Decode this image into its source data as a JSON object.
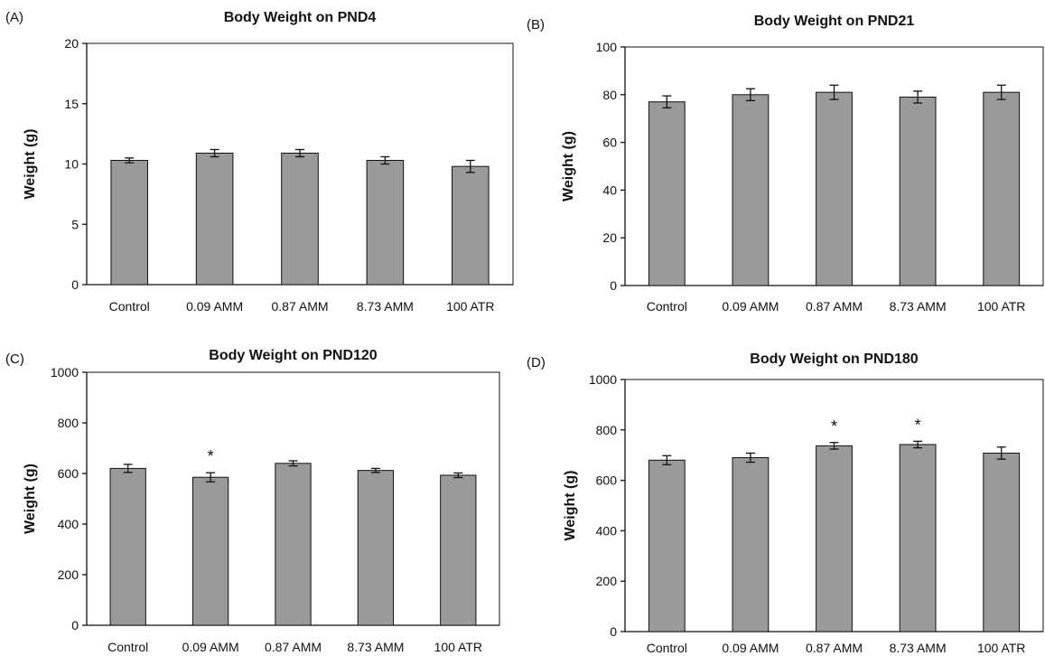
{
  "chart_data": [
    {
      "type": "bar",
      "panel": "(A)",
      "title": "Body Weight on PND4",
      "ylabel": "Weight (g)",
      "xlabel": "",
      "categories": [
        "Control",
        "0.09 AMM",
        "0.87 AMM",
        "8.73 AMM",
        "100 ATR"
      ],
      "values": [
        10.3,
        10.9,
        10.9,
        10.3,
        9.8
      ],
      "errors": [
        0.2,
        0.3,
        0.3,
        0.3,
        0.5
      ],
      "significant": [
        false,
        false,
        false,
        false,
        false
      ],
      "ylim": [
        0,
        20
      ],
      "yticks": [
        0,
        5,
        10,
        15,
        20
      ],
      "grid": false
    },
    {
      "type": "bar",
      "panel": "(B)",
      "title": "Body Weight on PND21",
      "ylabel": "Weight (g)",
      "xlabel": "",
      "categories": [
        "Control",
        "0.09 AMM",
        "0.87 AMM",
        "8.73 AMM",
        "100 ATR"
      ],
      "values": [
        77,
        80,
        81,
        79,
        81
      ],
      "errors": [
        2.5,
        2.5,
        3,
        2.5,
        3
      ],
      "significant": [
        false,
        false,
        false,
        false,
        false
      ],
      "ylim": [
        0,
        100
      ],
      "yticks": [
        0,
        20,
        40,
        60,
        80,
        100
      ],
      "grid": false
    },
    {
      "type": "bar",
      "panel": "(C)",
      "title": "Body Weight on PND120",
      "ylabel": "Weight (g)",
      "xlabel": "",
      "categories": [
        "Control",
        "0.09 AMM",
        "0.87 AMM",
        "8.73 AMM",
        "100 ATR"
      ],
      "values": [
        620,
        585,
        640,
        612,
        593
      ],
      "errors": [
        16,
        18,
        10,
        8,
        9
      ],
      "significant": [
        false,
        true,
        false,
        false,
        false
      ],
      "ylim": [
        0,
        1000
      ],
      "yticks": [
        0,
        200,
        400,
        600,
        800,
        1000
      ],
      "grid": false
    },
    {
      "type": "bar",
      "panel": "(D)",
      "title": "Body Weight on PND180",
      "ylabel": "Weight (g)",
      "xlabel": "",
      "categories": [
        "Control",
        "0.09 AMM",
        "0.87 AMM",
        "8.73 AMM",
        "100 ATR"
      ],
      "values": [
        680,
        690,
        737,
        742,
        708
      ],
      "errors": [
        18,
        18,
        13,
        13,
        24
      ],
      "significant": [
        false,
        false,
        true,
        true,
        false
      ],
      "ylim": [
        0,
        1000
      ],
      "yticks": [
        0,
        200,
        400,
        600,
        800,
        1000
      ],
      "grid": false
    }
  ],
  "significance_marker": "*",
  "colors": {
    "bar_fill": "#9a9a9a",
    "bar_stroke": "#111111",
    "axis": "#111111",
    "background": "#ffffff"
  }
}
